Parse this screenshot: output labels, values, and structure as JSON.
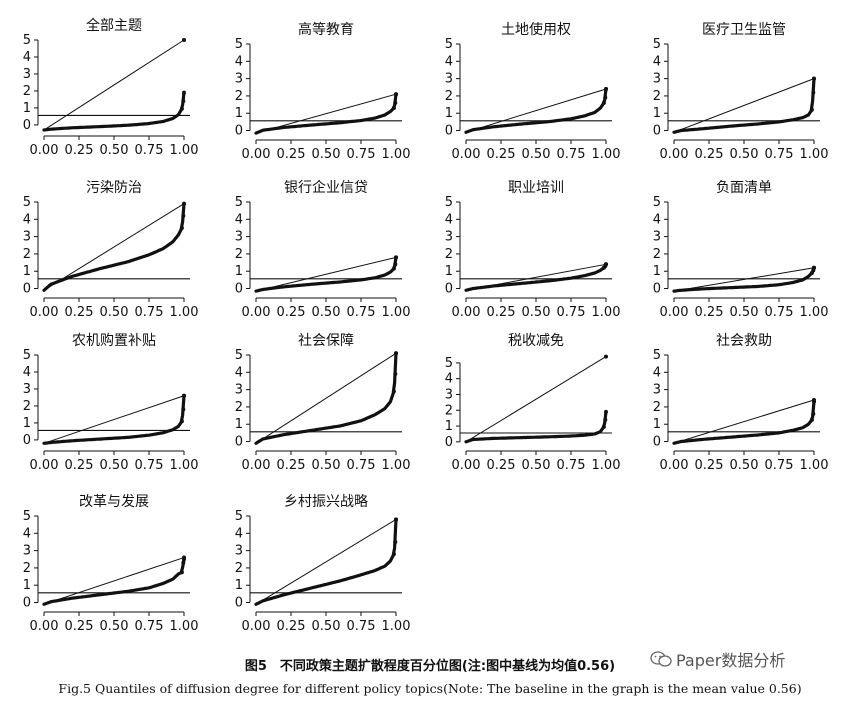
{
  "chart_data": [
    {
      "type": "scatter",
      "title": "全部主题",
      "mean": 0.56,
      "ylim": [
        -0.3,
        5
      ],
      "yticks": [
        0,
        1,
        2,
        3,
        4,
        5
      ],
      "xticks": [
        "0.00",
        "0.25",
        "0.50",
        "0.75",
        "1.00"
      ],
      "refline_end": 5.0,
      "quantiles": [
        [
          0,
          -0.3
        ],
        [
          0.05,
          -0.25
        ],
        [
          0.2,
          -0.17
        ],
        [
          0.4,
          -0.1
        ],
        [
          0.6,
          -0.02
        ],
        [
          0.75,
          0.08
        ],
        [
          0.85,
          0.2
        ],
        [
          0.92,
          0.38
        ],
        [
          0.96,
          0.6
        ],
        [
          0.985,
          0.95
        ],
        [
          0.995,
          1.4
        ],
        [
          1,
          1.9
        ]
      ]
    },
    {
      "type": "scatter",
      "title": "高等教育",
      "mean": 0.56,
      "ylim": [
        -0.2,
        5
      ],
      "yticks": [
        0,
        1,
        2,
        3,
        4,
        5
      ],
      "xticks": [
        "0.00",
        "0.25",
        "0.50",
        "0.75",
        "1.00"
      ],
      "refline_end": 2.1,
      "quantiles": [
        [
          0,
          -0.15
        ],
        [
          0.05,
          0.02
        ],
        [
          0.2,
          0.18
        ],
        [
          0.4,
          0.32
        ],
        [
          0.6,
          0.45
        ],
        [
          0.75,
          0.58
        ],
        [
          0.85,
          0.72
        ],
        [
          0.92,
          0.9
        ],
        [
          0.96,
          1.1
        ],
        [
          0.985,
          1.3
        ],
        [
          0.995,
          1.6
        ],
        [
          1,
          2.1
        ]
      ]
    },
    {
      "type": "scatter",
      "title": "土地使用权",
      "mean": 0.56,
      "ylim": [
        -0.2,
        5
      ],
      "yticks": [
        0,
        1,
        2,
        3,
        4,
        5
      ],
      "xticks": [
        "0.00",
        "0.25",
        "0.50",
        "0.75",
        "1.00"
      ],
      "refline_end": 2.4,
      "quantiles": [
        [
          0,
          -0.1
        ],
        [
          0.05,
          0.05
        ],
        [
          0.2,
          0.22
        ],
        [
          0.4,
          0.38
        ],
        [
          0.6,
          0.52
        ],
        [
          0.75,
          0.68
        ],
        [
          0.85,
          0.85
        ],
        [
          0.92,
          1.05
        ],
        [
          0.96,
          1.3
        ],
        [
          0.985,
          1.6
        ],
        [
          0.995,
          1.9
        ],
        [
          1,
          2.4
        ]
      ]
    },
    {
      "type": "scatter",
      "title": "医疗卫生监管",
      "mean": 0.56,
      "ylim": [
        -0.2,
        5
      ],
      "yticks": [
        0,
        1,
        2,
        3,
        4,
        5
      ],
      "xticks": [
        "0.00",
        "0.25",
        "0.50",
        "0.75",
        "1.00"
      ],
      "refline_end": 3.0,
      "quantiles": [
        [
          0,
          -0.1
        ],
        [
          0.05,
          0.0
        ],
        [
          0.2,
          0.1
        ],
        [
          0.4,
          0.25
        ],
        [
          0.6,
          0.38
        ],
        [
          0.75,
          0.5
        ],
        [
          0.85,
          0.62
        ],
        [
          0.92,
          0.75
        ],
        [
          0.96,
          0.9
        ],
        [
          0.985,
          1.2
        ],
        [
          0.995,
          2.2
        ],
        [
          1,
          3.0
        ]
      ]
    },
    {
      "type": "scatter",
      "title": "污染防治",
      "mean": 0.56,
      "ylim": [
        -0.2,
        5
      ],
      "yticks": [
        0,
        1,
        2,
        3,
        4,
        5
      ],
      "xticks": [
        "0.00",
        "0.25",
        "0.50",
        "0.75",
        "1.00"
      ],
      "refline_end": 4.9,
      "quantiles": [
        [
          0,
          -0.1
        ],
        [
          0.05,
          0.25
        ],
        [
          0.2,
          0.7
        ],
        [
          0.4,
          1.15
        ],
        [
          0.6,
          1.55
        ],
        [
          0.75,
          1.95
        ],
        [
          0.85,
          2.3
        ],
        [
          0.92,
          2.7
        ],
        [
          0.96,
          3.1
        ],
        [
          0.985,
          3.5
        ],
        [
          0.995,
          4.2
        ],
        [
          1,
          4.9
        ]
      ]
    },
    {
      "type": "scatter",
      "title": "银行企业信贷",
      "mean": 0.56,
      "ylim": [
        -0.2,
        5
      ],
      "yticks": [
        0,
        1,
        2,
        3,
        4,
        5
      ],
      "xticks": [
        "0.00",
        "0.25",
        "0.50",
        "0.75",
        "1.00"
      ],
      "refline_end": 1.8,
      "quantiles": [
        [
          0,
          -0.15
        ],
        [
          0.05,
          -0.05
        ],
        [
          0.2,
          0.1
        ],
        [
          0.4,
          0.25
        ],
        [
          0.6,
          0.38
        ],
        [
          0.75,
          0.5
        ],
        [
          0.85,
          0.62
        ],
        [
          0.92,
          0.78
        ],
        [
          0.96,
          0.95
        ],
        [
          0.985,
          1.15
        ],
        [
          0.995,
          1.4
        ],
        [
          1,
          1.8
        ]
      ]
    },
    {
      "type": "scatter",
      "title": "职业培训",
      "mean": 0.56,
      "ylim": [
        -0.2,
        5
      ],
      "yticks": [
        0,
        1,
        2,
        3,
        4,
        5
      ],
      "xticks": [
        "0.00",
        "0.25",
        "0.50",
        "0.75",
        "1.00"
      ],
      "refline_end": 1.4,
      "quantiles": [
        [
          0,
          -0.1
        ],
        [
          0.05,
          0.0
        ],
        [
          0.2,
          0.15
        ],
        [
          0.4,
          0.3
        ],
        [
          0.6,
          0.45
        ],
        [
          0.75,
          0.6
        ],
        [
          0.85,
          0.75
        ],
        [
          0.92,
          0.9
        ],
        [
          0.96,
          1.05
        ],
        [
          0.985,
          1.2
        ],
        [
          0.995,
          1.3
        ],
        [
          1,
          1.4
        ]
      ]
    },
    {
      "type": "scatter",
      "title": "负面清单",
      "mean": 0.56,
      "ylim": [
        -0.2,
        5
      ],
      "yticks": [
        0,
        1,
        2,
        3,
        4,
        5
      ],
      "xticks": [
        "0.00",
        "0.25",
        "0.50",
        "0.75",
        "1.00"
      ],
      "refline_end": 1.2,
      "quantiles": [
        [
          0,
          -0.15
        ],
        [
          0.05,
          -0.1
        ],
        [
          0.2,
          -0.02
        ],
        [
          0.4,
          0.05
        ],
        [
          0.6,
          0.12
        ],
        [
          0.75,
          0.22
        ],
        [
          0.85,
          0.35
        ],
        [
          0.92,
          0.5
        ],
        [
          0.96,
          0.7
        ],
        [
          0.985,
          0.9
        ],
        [
          0.995,
          1.05
        ],
        [
          1,
          1.2
        ]
      ]
    },
    {
      "type": "scatter",
      "title": "农机购置补贴",
      "mean": 0.56,
      "ylim": [
        -0.3,
        5
      ],
      "yticks": [
        0,
        1,
        2,
        3,
        4,
        5
      ],
      "xticks": [
        "0.00",
        "0.25",
        "0.50",
        "0.75",
        "1.00"
      ],
      "refline_end": 2.6,
      "quantiles": [
        [
          0,
          -0.2
        ],
        [
          0.05,
          -0.15
        ],
        [
          0.2,
          -0.05
        ],
        [
          0.4,
          0.05
        ],
        [
          0.6,
          0.15
        ],
        [
          0.75,
          0.28
        ],
        [
          0.85,
          0.42
        ],
        [
          0.92,
          0.6
        ],
        [
          0.96,
          0.8
        ],
        [
          0.985,
          1.1
        ],
        [
          0.995,
          1.8
        ],
        [
          1,
          2.6
        ]
      ]
    },
    {
      "type": "scatter",
      "title": "社会保障",
      "mean": 0.56,
      "ylim": [
        -0.2,
        5
      ],
      "yticks": [
        0,
        1,
        2,
        3,
        4,
        5
      ],
      "xticks": [
        "0.00",
        "0.25",
        "0.50",
        "0.75",
        "1.00"
      ],
      "refline_end": 5.1,
      "quantiles": [
        [
          0,
          -0.1
        ],
        [
          0.05,
          0.15
        ],
        [
          0.2,
          0.4
        ],
        [
          0.4,
          0.65
        ],
        [
          0.6,
          0.9
        ],
        [
          0.75,
          1.2
        ],
        [
          0.85,
          1.55
        ],
        [
          0.92,
          1.9
        ],
        [
          0.96,
          2.3
        ],
        [
          0.985,
          2.9
        ],
        [
          0.995,
          3.9
        ],
        [
          1,
          5.1
        ]
      ]
    },
    {
      "type": "scatter",
      "title": "税收减免",
      "mean": 0.56,
      "ylim": [
        -0.2,
        5.5
      ],
      "yticks": [
        0,
        1,
        2,
        3,
        4,
        5
      ],
      "xticks": [
        "0.00",
        "0.25",
        "0.50",
        "0.75",
        "1.00"
      ],
      "refline_end": 5.4,
      "quantiles": [
        [
          0,
          0.0
        ],
        [
          0.05,
          0.15
        ],
        [
          0.2,
          0.22
        ],
        [
          0.4,
          0.27
        ],
        [
          0.6,
          0.32
        ],
        [
          0.75,
          0.37
        ],
        [
          0.85,
          0.42
        ],
        [
          0.92,
          0.5
        ],
        [
          0.96,
          0.65
        ],
        [
          0.985,
          0.95
        ],
        [
          0.995,
          1.4
        ],
        [
          1,
          1.9
        ]
      ]
    },
    {
      "type": "scatter",
      "title": "社会救助",
      "mean": 0.56,
      "ylim": [
        -0.2,
        5
      ],
      "yticks": [
        0,
        1,
        2,
        3,
        4,
        5
      ],
      "xticks": [
        "0.00",
        "0.25",
        "0.50",
        "0.75",
        "1.00"
      ],
      "refline_end": 2.4,
      "quantiles": [
        [
          0,
          -0.1
        ],
        [
          0.05,
          0.0
        ],
        [
          0.2,
          0.12
        ],
        [
          0.4,
          0.25
        ],
        [
          0.6,
          0.38
        ],
        [
          0.75,
          0.5
        ],
        [
          0.85,
          0.65
        ],
        [
          0.92,
          0.8
        ],
        [
          0.96,
          1.0
        ],
        [
          0.985,
          1.25
        ],
        [
          0.995,
          1.6
        ],
        [
          1,
          2.3
        ]
      ]
    },
    {
      "type": "scatter",
      "title": "改革与发展",
      "mean": 0.56,
      "ylim": [
        -0.2,
        5
      ],
      "yticks": [
        0,
        1,
        2,
        3,
        4,
        5
      ],
      "xticks": [
        "0.00",
        "0.25",
        "0.50",
        "0.75",
        "1.00"
      ],
      "refline_end": 2.6,
      "quantiles": [
        [
          0,
          -0.1
        ],
        [
          0.05,
          0.05
        ],
        [
          0.2,
          0.25
        ],
        [
          0.4,
          0.45
        ],
        [
          0.6,
          0.65
        ],
        [
          0.75,
          0.85
        ],
        [
          0.85,
          1.1
        ],
        [
          0.92,
          1.35
        ],
        [
          0.96,
          1.65
        ],
        [
          0.985,
          1.75
        ],
        [
          0.995,
          2.3
        ],
        [
          1,
          2.5
        ]
      ]
    },
    {
      "type": "scatter",
      "title": "乡村振兴战略",
      "mean": 0.56,
      "ylim": [
        -0.2,
        5
      ],
      "yticks": [
        0,
        1,
        2,
        3,
        4,
        5
      ],
      "xticks": [
        "0.00",
        "0.25",
        "0.50",
        "0.75",
        "1.00"
      ],
      "refline_end": 4.8,
      "quantiles": [
        [
          0,
          -0.1
        ],
        [
          0.05,
          0.1
        ],
        [
          0.2,
          0.45
        ],
        [
          0.4,
          0.85
        ],
        [
          0.6,
          1.25
        ],
        [
          0.75,
          1.6
        ],
        [
          0.85,
          1.85
        ],
        [
          0.92,
          2.1
        ],
        [
          0.96,
          2.4
        ],
        [
          0.985,
          2.8
        ],
        [
          0.995,
          3.5
        ],
        [
          1,
          4.8
        ]
      ]
    }
  ],
  "caption": {
    "cn": "图5　不同政策主题扩散程度百分位图(注:图中基线为均值0.56)",
    "en": "Fig.5 Quantiles of diffusion degree for different policy topics(Note: The baseline in the graph is the mean value 0.56)"
  },
  "watermark": "Paper数据分析"
}
